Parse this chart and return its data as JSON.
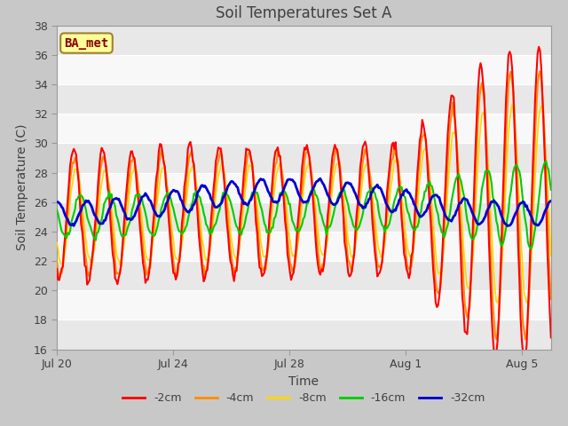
{
  "title": "Soil Temperatures Set A",
  "xlabel": "Time",
  "ylabel": "Soil Temperature (C)",
  "ylim": [
    16,
    38
  ],
  "yticks": [
    16,
    18,
    20,
    22,
    24,
    26,
    28,
    30,
    32,
    34,
    36,
    38
  ],
  "annotation_text": "BA_met",
  "annotation_color": "#8B0000",
  "annotation_bg": "#FFFF99",
  "annotation_border": "#A08030",
  "fig_bg_color": "#C8C8C8",
  "band_colors": [
    "#E8E8E8",
    "#F8F8F8"
  ],
  "grid_color": "#FFFFFF",
  "line_colors": [
    "#FF0000",
    "#FF8C00",
    "#FFD700",
    "#00CC00",
    "#0000CD"
  ],
  "line_labels": [
    "-2cm",
    "-4cm",
    "-8cm",
    "-16cm",
    "-32cm"
  ],
  "line_widths": [
    1.5,
    1.5,
    1.2,
    1.5,
    2.0
  ],
  "n_days": 17,
  "xtick_positions": [
    0,
    4,
    8,
    12,
    16
  ],
  "xtick_labels": [
    "Jul 20",
    "Jul 24",
    "Jul 28",
    "Aug 1",
    "Aug 5"
  ]
}
